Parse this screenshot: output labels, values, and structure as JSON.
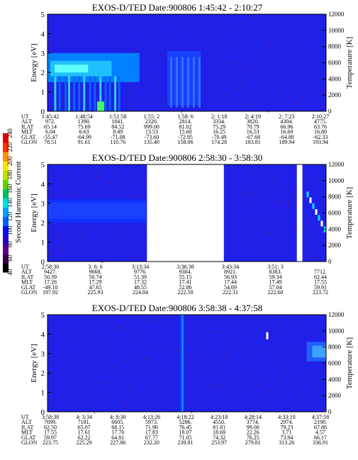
{
  "figure": {
    "colorbar": {
      "label": "Second Harmonic Current",
      "ticks": [
        "40",
        "60",
        "80",
        "100",
        "120",
        "140",
        "160",
        "180",
        "200",
        "220",
        "240"
      ],
      "colors": [
        "#000000",
        "#3a0050",
        "#5a0090",
        "#2a00c8",
        "#0010ff",
        "#0060ff",
        "#00a0ff",
        "#00e0e0",
        "#00c060",
        "#60d000",
        "#c0e000",
        "#ffe000",
        "#ff9000",
        "#ff3000",
        "#e00000"
      ]
    },
    "colors": {
      "background": "#2020e8",
      "noise": "#5a1a8a",
      "hot": "#00e0ff",
      "gap": "#ffffff"
    }
  },
  "chart_data": [
    {
      "type": "heatmap",
      "title": "EXOS-D/TED   Date:900806   1:45:42 - 2:10:27",
      "ylabel": "Energy [eV]",
      "y2label": "Temperature [K]",
      "ylim": [
        0,
        5
      ],
      "y2lim": [
        0,
        12000
      ],
      "yticks": [
        "0",
        "1",
        "2",
        "3",
        "4",
        "5"
      ],
      "y2ticks": [
        "0",
        "2000",
        "4000",
        "6000",
        "8000",
        "10000",
        "12000"
      ],
      "orbit_labels": [
        "UT",
        "ALT",
        "ILAT",
        "MLT",
        "GLAT",
        "GLON"
      ],
      "orbit_columns": [
        [
          "1:45:42",
          "972.",
          "65.14",
          "6.04",
          "-55.47",
          "78.51"
        ],
        [
          "1:48:54",
          "1390.",
          "75.69",
          "6.63",
          "-64.99",
          "91.61"
        ],
        [
          "1:51:58",
          "1841.",
          "84.52",
          "8.49",
          "-71.08",
          "110.76"
        ],
        [
          "1:55: 2",
          "2320.",
          "999.00",
          "13.53",
          "-73.60",
          "135.40"
        ],
        [
          "1:58: 6",
          "2814.",
          "81.02",
          "15.60",
          "-72.95",
          "158.06"
        ],
        [
          "2: 1:18",
          "3334.",
          "75.29",
          "16.25",
          "-70.49",
          "174.28"
        ],
        [
          "2: 4:19",
          "3820.",
          "70.79",
          "16.53",
          "-67.68",
          "183.81"
        ],
        [
          "2: 7:23",
          "4304.",
          "66.96",
          "16.69",
          "-64.88",
          "189.94"
        ],
        [
          "2:10:27",
          "4775.",
          "63.76",
          "16.80",
          "-62.33",
          "193.94"
        ]
      ]
    },
    {
      "type": "heatmap",
      "title": "EXOS-D/TED   Date:900806   2:58:30 - 3:58:30",
      "ylabel": "Energy [eV]",
      "y2label": "Temperature [K]",
      "ylim": [
        0,
        5
      ],
      "y2lim": [
        0,
        12000
      ],
      "yticks": [
        "0",
        "1",
        "2",
        "3",
        "4",
        "5"
      ],
      "y2ticks": [
        "0",
        "2000",
        "4000",
        "6000",
        "8000",
        "10000",
        "12000"
      ],
      "orbit_labels": [
        "UT",
        "ALT",
        "ILAT",
        "MLT",
        "GLAT",
        "GLON"
      ],
      "orbit_columns": [
        [
          "2:58:30",
          "9427.",
          "50.39",
          "17.26",
          "-49.10",
          "197.92"
        ],
        [
          "3: 6: 6",
          "9668.",
          "50.74",
          "17.29",
          "47.65",
          "225.93"
        ],
        [
          "3:13:34",
          "9776.",
          "51.39",
          "17.32",
          "48.55",
          "224.84"
        ],
        [
          "3:36:38",
          "9304.",
          "55.15",
          "17.41",
          "52.86",
          "222.50"
        ],
        [
          "3:43:34",
          "8921.",
          "56.93",
          "17.44",
          "54.69",
          "222.31"
        ],
        [
          "3:51: 3",
          "8383.",
          "59.34",
          "17.49",
          "57.04",
          "222.60"
        ],
        [
          "",
          "7712.",
          "62.44",
          "17.55",
          "59.91",
          "223.72"
        ]
      ]
    },
    {
      "type": "heatmap",
      "title": "EXOS-D/TED   Date:900806   3:58:38 - 4:37:58",
      "ylabel": "Energy [eV]",
      "y2label": "Temperature [K]",
      "ylim": [
        0,
        5
      ],
      "y2lim": [
        0,
        12000
      ],
      "yticks": [
        "0",
        "1",
        "2",
        "3",
        "4",
        "5"
      ],
      "y2ticks": [
        "0",
        "2000",
        "4000",
        "6000",
        "8000",
        "10000",
        "12000"
      ],
      "orbit_labels": [
        "UT",
        "ALT",
        "ILAT",
        "MLT",
        "GLAT",
        "GLON"
      ],
      "orbit_columns": [
        [
          "3:58:38",
          "7699.",
          "62.50",
          "17.55",
          "59.97",
          "223.75"
        ],
        [
          "4: 3:34",
          "7181.",
          "65.07",
          "17.61",
          "62.22",
          "225.29"
        ],
        [
          "4: 8:30",
          "6605.",
          "68.15",
          "17.70",
          "64.81",
          "227.86"
        ],
        [
          "4:13:26",
          "5973.",
          "71.90",
          "17.83",
          "67.77",
          "232.20"
        ],
        [
          "4:18:22",
          "5286.",
          "76.45",
          "18.07",
          "71.05",
          "239.81"
        ],
        [
          "4:23:18",
          "4550.",
          "81.81",
          "18.69",
          "74.32",
          "253.97"
        ],
        [
          "4:28:14",
          "3774.",
          "99.00",
          "22.26",
          "76.25",
          "279.81"
        ],
        [
          "4:33:10",
          "2974.",
          "79.23",
          "3.71",
          "73.94",
          "313.26"
        ],
        [
          "4:37:58",
          "2198.",
          "67.88",
          "4.57",
          "66.17",
          "336.91"
        ]
      ]
    }
  ]
}
